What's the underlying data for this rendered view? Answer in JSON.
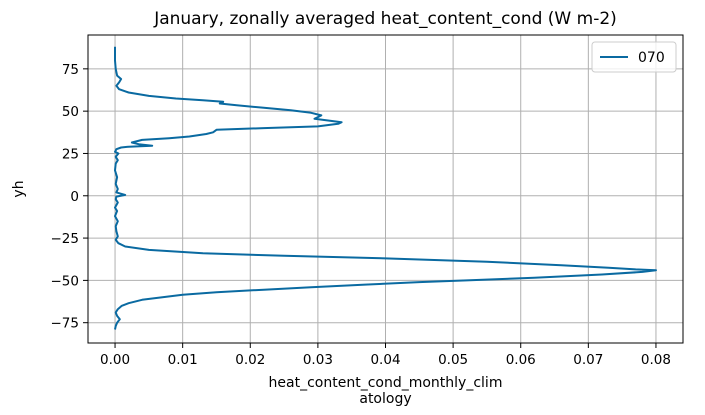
{
  "chart_data": {
    "type": "line",
    "title": "January, zonally averaged heat_content_cond (W m-2)",
    "xlabel_lines": [
      "heat_content_cond_monthly_clim",
      "atology"
    ],
    "ylabel": "yh",
    "xlim": [
      -0.004,
      0.084
    ],
    "ylim": [
      -87,
      95
    ],
    "xticks": [
      0.0,
      0.01,
      0.02,
      0.03,
      0.04,
      0.05,
      0.06,
      0.07,
      0.08
    ],
    "xtick_labels": [
      "0.00",
      "0.01",
      "0.02",
      "0.03",
      "0.04",
      "0.05",
      "0.06",
      "0.07",
      "0.08"
    ],
    "yticks": [
      -75,
      -50,
      -25,
      0,
      25,
      50,
      75
    ],
    "ytick_labels": [
      "−75",
      "−50",
      "−25",
      "0",
      "25",
      "50",
      "75"
    ],
    "grid": true,
    "legend_position": "top-right",
    "series": [
      {
        "name": "070",
        "color": "#0a6aa1",
        "points": [
          [
            0.0,
            88
          ],
          [
            0.0,
            80
          ],
          [
            0.0001,
            75
          ],
          [
            0.0003,
            71
          ],
          [
            0.0009,
            69
          ],
          [
            0.0006,
            67
          ],
          [
            0.0002,
            65
          ],
          [
            0.0006,
            63
          ],
          [
            0.002,
            61
          ],
          [
            0.005,
            59
          ],
          [
            0.009,
            57.5
          ],
          [
            0.013,
            56.5
          ],
          [
            0.016,
            55.5
          ],
          [
            0.0155,
            54.5
          ],
          [
            0.018,
            53.5
          ],
          [
            0.022,
            52
          ],
          [
            0.026,
            50.5
          ],
          [
            0.029,
            49
          ],
          [
            0.0305,
            47.5
          ],
          [
            0.03,
            46.5
          ],
          [
            0.0295,
            45.5
          ],
          [
            0.0305,
            45
          ],
          [
            0.0335,
            43.5
          ],
          [
            0.033,
            42.5
          ],
          [
            0.03,
            41
          ],
          [
            0.022,
            40
          ],
          [
            0.015,
            39
          ],
          [
            0.0145,
            37.5
          ],
          [
            0.0135,
            36.5
          ],
          [
            0.011,
            35
          ],
          [
            0.008,
            34
          ],
          [
            0.004,
            33
          ],
          [
            0.0025,
            31.5
          ],
          [
            0.0035,
            30.5
          ],
          [
            0.0055,
            29.5
          ],
          [
            0.002,
            29
          ],
          [
            0.0009,
            28.5
          ],
          [
            0.0002,
            27.5
          ],
          [
            0.0,
            26
          ],
          [
            0.0005,
            25
          ],
          [
            0.0001,
            23
          ],
          [
            0.0004,
            21
          ],
          [
            0.0001,
            19
          ],
          [
            0.0,
            15
          ],
          [
            0.0003,
            11
          ],
          [
            0.0001,
            7
          ],
          [
            0.0004,
            4
          ],
          [
            0.0002,
            2
          ],
          [
            0.0015,
            0.5
          ],
          [
            0.0002,
            -0.5
          ],
          [
            0.0001,
            -2
          ],
          [
            0.0004,
            -4
          ],
          [
            0.0,
            -7
          ],
          [
            0.0003,
            -9
          ],
          [
            0.0,
            -12
          ],
          [
            0.0004,
            -15
          ],
          [
            0.0001,
            -18
          ],
          [
            0.0002,
            -21
          ],
          [
            0.0004,
            -24
          ],
          [
            0.0001,
            -26
          ],
          [
            0.0005,
            -28
          ],
          [
            0.0015,
            -30
          ],
          [
            0.005,
            -32
          ],
          [
            0.013,
            -34
          ],
          [
            0.025,
            -35.5
          ],
          [
            0.04,
            -37
          ],
          [
            0.055,
            -39
          ],
          [
            0.066,
            -41
          ],
          [
            0.073,
            -42.5
          ],
          [
            0.077,
            -43.5
          ],
          [
            0.08,
            -44
          ],
          [
            0.078,
            -45
          ],
          [
            0.072,
            -46.5
          ],
          [
            0.062,
            -48.5
          ],
          [
            0.052,
            -50
          ],
          [
            0.045,
            -51
          ],
          [
            0.037,
            -52.5
          ],
          [
            0.029,
            -54
          ],
          [
            0.022,
            -55.5
          ],
          [
            0.015,
            -57
          ],
          [
            0.01,
            -58.5
          ],
          [
            0.007,
            -60
          ],
          [
            0.004,
            -61.5
          ],
          [
            0.002,
            -63.5
          ],
          [
            0.001,
            -65
          ],
          [
            0.0004,
            -67
          ],
          [
            0.0001,
            -69
          ],
          [
            0.0003,
            -71
          ],
          [
            0.0007,
            -73
          ],
          [
            0.0003,
            -75
          ],
          [
            0.0001,
            -77
          ],
          [
            0.0,
            -79
          ]
        ]
      }
    ]
  }
}
